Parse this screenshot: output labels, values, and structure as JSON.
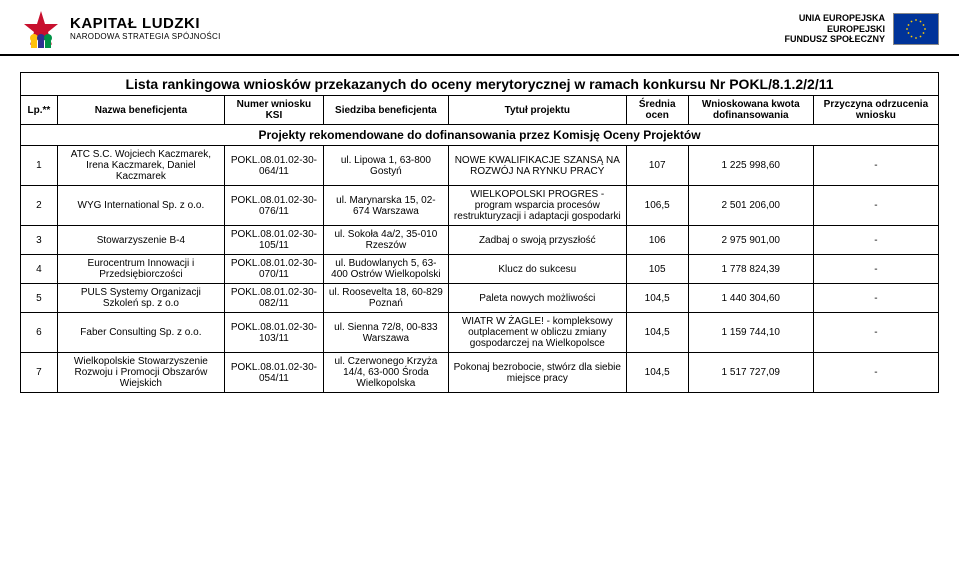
{
  "header": {
    "left_logo_main": "KAPITAŁ LUDZKI",
    "left_logo_sub": "NARODOWA STRATEGIA SPÓJNOŚCI",
    "right_line1": "UNIA EUROPEJSKA",
    "right_line2": "EUROPEJSKI",
    "right_line3": "FUNDUSZ SPOŁECZNY"
  },
  "title": "Lista rankingowa wniosków przekazanych do oceny merytorycznej w ramach konkursu Nr POKL/8.1.2/2/11",
  "columns": {
    "lp": "Lp.**",
    "name": "Nazwa beneficjenta",
    "num": "Numer wniosku KSI",
    "addr": "Siedziba beneficjenta",
    "proj": "Tytuł projektu",
    "score": "Średnia ocen",
    "amount": "Wnioskowana kwota dofinansowania",
    "reason": "Przyczyna odrzucenia wniosku"
  },
  "section1": "Projekty rekomendowane do dofinansowania przez Komisję Oceny Projektów",
  "rows": [
    {
      "lp": "1",
      "name": "ATC S.C. Wojciech Kaczmarek, Irena Kaczmarek, Daniel Kaczmarek",
      "num": "POKL.08.01.02-30-064/11",
      "addr": "ul. Lipowa 1, 63-800 Gostyń",
      "proj": "NOWE KWALIFIKACJE SZANSĄ NA ROZWÓJ NA RYNKU PRACY",
      "score": "107",
      "amount": "1 225 998,60",
      "reason": "-"
    },
    {
      "lp": "2",
      "name": "WYG International Sp. z o.o.",
      "num": "POKL.08.01.02-30-076/11",
      "addr": "ul. Marynarska 15, 02-674 Warszawa",
      "proj": "WIELKOPOLSKI PROGRES - program wsparcia procesów restrukturyzacji i adaptacji gospodarki",
      "score": "106,5",
      "amount": "2 501 206,00",
      "reason": "-"
    },
    {
      "lp": "3",
      "name": "Stowarzyszenie B-4",
      "num": "POKL.08.01.02-30-105/11",
      "addr": "ul. Sokoła 4a/2, 35-010 Rzeszów",
      "proj": "Zadbaj o swoją przyszłość",
      "score": "106",
      "amount": "2 975 901,00",
      "reason": "-"
    },
    {
      "lp": "4",
      "name": "Eurocentrum Innowacji i Przedsiębiorczości",
      "num": "POKL.08.01.02-30-070/11",
      "addr": "ul. Budowlanych 5, 63-400 Ostrów Wielkopolski",
      "proj": "Klucz do sukcesu",
      "score": "105",
      "amount": "1 778 824,39",
      "reason": "-"
    },
    {
      "lp": "5",
      "name": "PULS Systemy Organizacji Szkoleń sp. z o.o",
      "num": "POKL.08.01.02-30-082/11",
      "addr": "ul. Roosevelta 18, 60-829 Poznań",
      "proj": "Paleta nowych możliwości",
      "score": "104,5",
      "amount": "1 440 304,60",
      "reason": "-"
    },
    {
      "lp": "6",
      "name": "Faber Consulting Sp. z o.o.",
      "num": "POKL.08.01.02-30-103/11",
      "addr": "ul. Sienna 72/8, 00-833 Warszawa",
      "proj": "WIATR W ŻAGLE! - kompleksowy outplacement w obliczu zmiany gospodarczej na Wielkopolsce",
      "score": "104,5",
      "amount": "1 159 744,10",
      "reason": "-"
    },
    {
      "lp": "7",
      "name": "Wielkopolskie Stowarzyszenie Rozwoju i Promocji Obszarów Wiejskich",
      "num": "POKL.08.01.02-30-054/11",
      "addr": "ul. Czerwonego Krzyża 14/4, 63-000 Środa Wielkopolska",
      "proj": "Pokonaj bezrobocie, stwórz dla siebie miejsce pracy",
      "score": "104,5",
      "amount": "1 517 727,09",
      "reason": "-"
    }
  ],
  "colors": {
    "border": "#000000",
    "bg": "#ffffff",
    "eu_blue": "#003399",
    "eu_yellow": "#ffcc00"
  }
}
